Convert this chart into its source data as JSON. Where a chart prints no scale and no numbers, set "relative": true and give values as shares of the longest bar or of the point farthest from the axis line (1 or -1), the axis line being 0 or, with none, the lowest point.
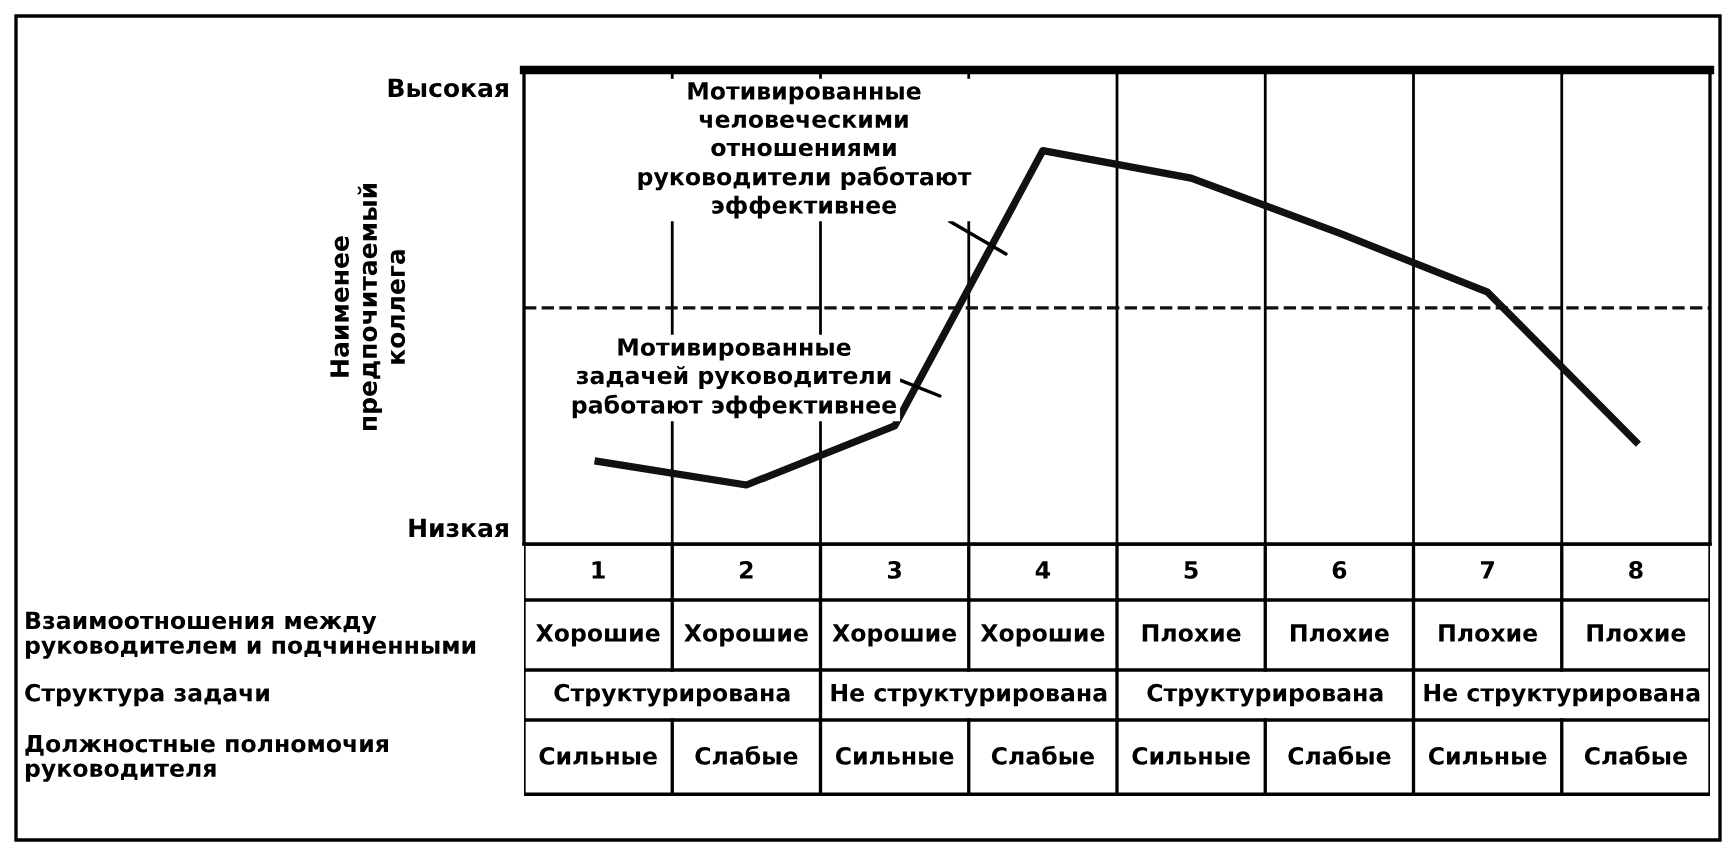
{
  "chart_data": {
    "type": "line",
    "relative": true,
    "ylabel": "Наименее\nпредпочитаемый\nколлега",
    "categories": [
      "1",
      "2",
      "3",
      "4",
      "5",
      "6",
      "7",
      "8"
    ],
    "series": [
      {
        "color": "#111111",
        "values": [
          0.21,
          0.15,
          0.3,
          1.0,
          0.93,
          0.79,
          0.64,
          0.26
        ]
      }
    ],
    "ref_lines": [
      {
        "axis": "y",
        "value": 0.6,
        "color": "#111111",
        "line_style": "dashed"
      }
    ],
    "grid": "x",
    "legend": false,
    "marker": "none",
    "line_style": "solid",
    "annotations": [
      "Мотивированные\nчеловеческими\nотношениями\nруководители работают\nэффективнее",
      "Мотивированные\nзадачей руководители\nработают эффективнее",
      "Высокая",
      "Низкая",
      "Взаимоотношения между\nруководителем и подчиненными",
      "Хорошие",
      "Хорошие",
      "Хорошие",
      "Хорошие",
      "Плохие",
      "Плохие",
      "Плохие",
      "Плохие",
      "Структура задачи",
      "Структурирована",
      "Не структурирована",
      "Структурирована",
      "Не структурирована",
      "Должностные полномочия\nруководителя",
      "Сильные",
      "Слабые",
      "Сильные",
      "Слабые",
      "Сильные",
      "Слабые",
      "Сильные",
      "Слабые"
    ]
  }
}
